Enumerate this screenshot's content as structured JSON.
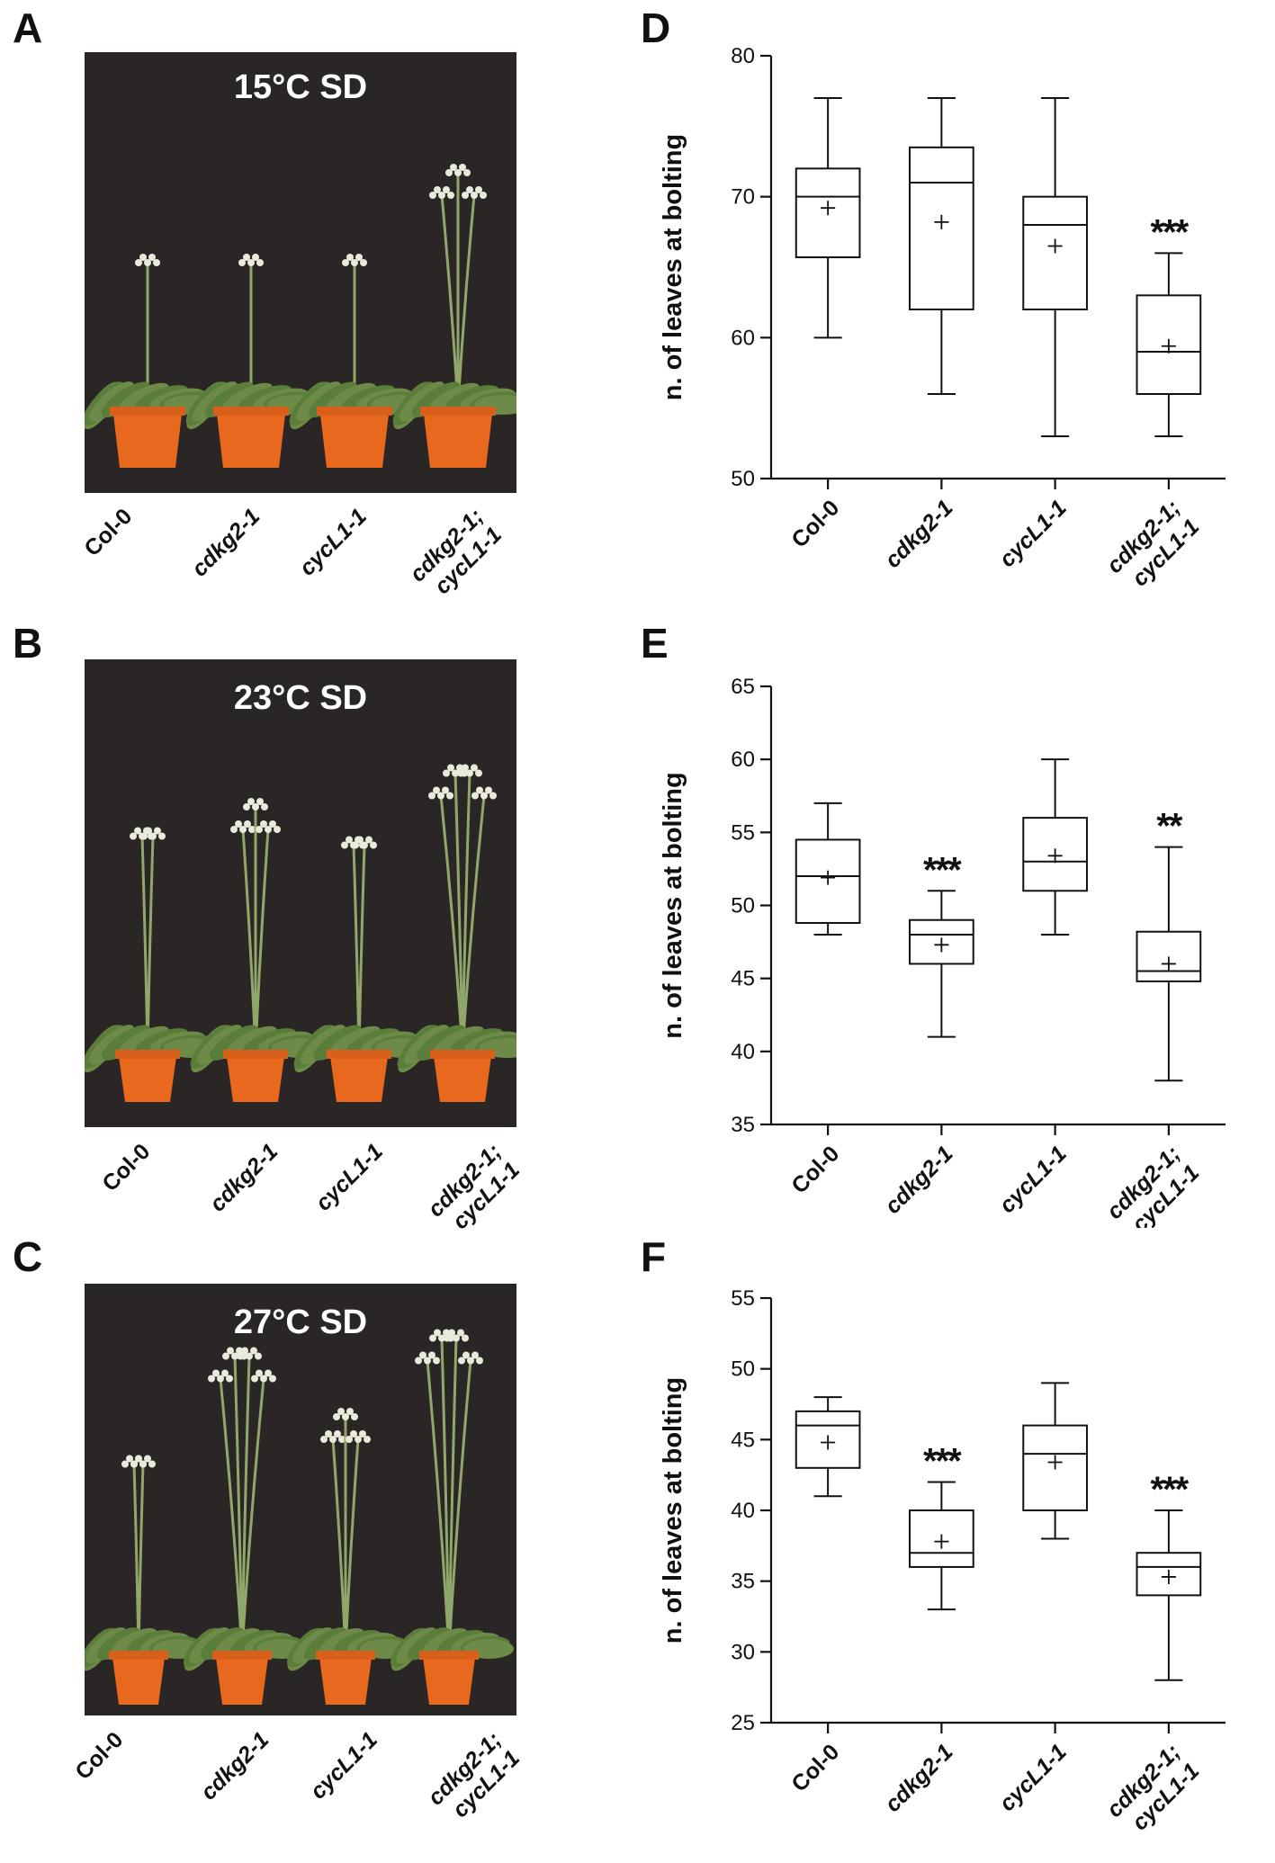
{
  "panels": {
    "A": "A",
    "B": "B",
    "C": "C",
    "D": "D",
    "E": "E",
    "F": "F"
  },
  "photos": [
    {
      "condition": "15°C SD"
    },
    {
      "condition": "23°C SD"
    },
    {
      "condition": "27°C SD"
    }
  ],
  "genotype_labels": [
    {
      "l1": "Col-0",
      "l2": ""
    },
    {
      "l1": "cdkg2-1",
      "l2": ""
    },
    {
      "l1": "cycL1-1",
      "l2": ""
    },
    {
      "l1": "cdkg2-1;",
      "l2": "cycL1-1"
    }
  ],
  "colors": {
    "background_photo": "#2a2626",
    "pot": "#e8691d",
    "rosette": "#5a7d3a",
    "stem": "#8fa86a"
  },
  "chart_data": [
    {
      "type": "box",
      "panel": "D",
      "ylabel": "n. of leaves at bolting",
      "ylim": [
        50,
        80
      ],
      "yticks": [
        50,
        60,
        70,
        80
      ],
      "categories": [
        "Col-0",
        "cdkg2-1",
        "cycL1-1",
        "cdkg2-1;\ncycL1-1"
      ],
      "boxes": [
        {
          "min": 60,
          "q1": 65.7,
          "median": 70,
          "q3": 72,
          "max": 77,
          "mean": 69.2,
          "sig": ""
        },
        {
          "min": 56,
          "q1": 62,
          "median": 71,
          "q3": 73.5,
          "max": 77,
          "mean": 68.2,
          "sig": ""
        },
        {
          "min": 53,
          "q1": 62,
          "median": 68,
          "q3": 70,
          "max": 77,
          "mean": 66.5,
          "sig": ""
        },
        {
          "min": 53,
          "q1": 56,
          "median": 59,
          "q3": 63,
          "max": 66,
          "mean": 59.4,
          "sig": "***"
        }
      ]
    },
    {
      "type": "box",
      "panel": "E",
      "ylabel": "n. of leaves at bolting",
      "ylim": [
        35,
        65
      ],
      "yticks": [
        35,
        40,
        45,
        50,
        55,
        60,
        65
      ],
      "categories": [
        "Col-0",
        "cdkg2-1",
        "cycL1-1",
        "cdkg2-1;\ncycL1-1"
      ],
      "boxes": [
        {
          "min": 48,
          "q1": 48.8,
          "median": 52,
          "q3": 54.5,
          "max": 57,
          "mean": 51.9,
          "sig": ""
        },
        {
          "min": 41,
          "q1": 46,
          "median": 48,
          "q3": 49,
          "max": 51,
          "mean": 47.3,
          "sig": "***"
        },
        {
          "min": 48,
          "q1": 51,
          "median": 53,
          "q3": 56,
          "max": 60,
          "mean": 53.4,
          "sig": ""
        },
        {
          "min": 38,
          "q1": 44.8,
          "median": 45.5,
          "q3": 48.2,
          "max": 54,
          "mean": 46,
          "sig": "**"
        }
      ]
    },
    {
      "type": "box",
      "panel": "F",
      "ylabel": "n. of leaves at bolting",
      "ylim": [
        25,
        55
      ],
      "yticks": [
        25,
        30,
        35,
        40,
        45,
        50,
        55
      ],
      "categories": [
        "Col-0",
        "cdkg2-1",
        "cycL1-1",
        "cdkg2-1;\ncycL1-1"
      ],
      "boxes": [
        {
          "min": 41,
          "q1": 43,
          "median": 46,
          "q3": 47,
          "max": 48,
          "mean": 44.8,
          "sig": ""
        },
        {
          "min": 33,
          "q1": 36,
          "median": 37,
          "q3": 40,
          "max": 42,
          "mean": 37.8,
          "sig": "***"
        },
        {
          "min": 38,
          "q1": 40,
          "median": 44,
          "q3": 46,
          "max": 49,
          "mean": 43.4,
          "sig": ""
        },
        {
          "min": 28,
          "q1": 34,
          "median": 36,
          "q3": 37,
          "max": 40,
          "mean": 35.3,
          "sig": "***"
        }
      ]
    }
  ]
}
